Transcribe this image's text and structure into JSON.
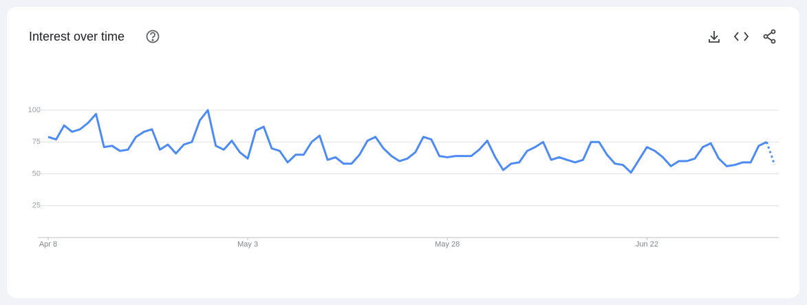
{
  "chart_data": {
    "type": "line",
    "title": "Interest over time",
    "categories": [
      "Apr 8",
      null,
      null,
      null,
      null,
      null,
      null,
      null,
      null,
      null,
      null,
      null,
      null,
      null,
      null,
      null,
      null,
      null,
      null,
      null,
      null,
      null,
      null,
      null,
      null,
      "May 3",
      null,
      null,
      null,
      null,
      null,
      null,
      null,
      null,
      null,
      null,
      null,
      null,
      null,
      null,
      null,
      null,
      null,
      null,
      null,
      null,
      null,
      null,
      null,
      null,
      "May 28",
      null,
      null,
      null,
      null,
      null,
      null,
      null,
      null,
      null,
      null,
      null,
      null,
      null,
      null,
      null,
      null,
      null,
      null,
      null,
      null,
      null,
      null,
      null,
      null,
      "Jun 22",
      null,
      null,
      null,
      null,
      null,
      null,
      null,
      null,
      null,
      null,
      null,
      null,
      null,
      null,
      null,
      null
    ],
    "series": [
      {
        "color": "#4c8bf5",
        "values": [
          79,
          77,
          88,
          83,
          85,
          90,
          97,
          71,
          72,
          68,
          69,
          79,
          83,
          85,
          69,
          73,
          66,
          73,
          75,
          92,
          100,
          72,
          69,
          76,
          67,
          62,
          84,
          87,
          70,
          68,
          59,
          65,
          65,
          75,
          80,
          61,
          63,
          58,
          58,
          65,
          76,
          79,
          70,
          64,
          60,
          62,
          67,
          79,
          77,
          64,
          63,
          64,
          64,
          64,
          69,
          76,
          63,
          53,
          58,
          59,
          68,
          71,
          75,
          61,
          63,
          61,
          59,
          61,
          75,
          75,
          65,
          58,
          57,
          51,
          61,
          71,
          68,
          63,
          56,
          60,
          60,
          62,
          71,
          74,
          62,
          56,
          57,
          59,
          59,
          72,
          75,
          57
        ]
      }
    ],
    "ylim": [
      0,
      100
    ],
    "yticks": [
      25,
      50,
      75,
      100
    ],
    "grid": true,
    "last_point_partial": true
  }
}
